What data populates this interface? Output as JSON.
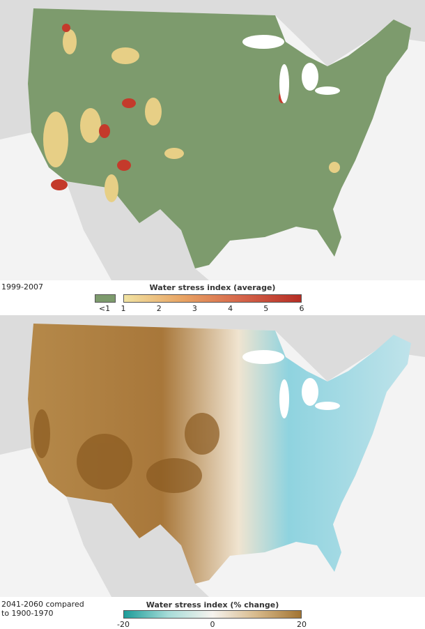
{
  "maps": [
    {
      "period": "1999-2007",
      "legend": {
        "title": "Water stress index (average)",
        "low_label": "<1",
        "ticks": [
          1,
          2,
          3,
          4,
          5,
          6
        ]
      }
    },
    {
      "period": "2041-2060 compared to 1900-1970",
      "legend": {
        "title": "Water stress index (% change)",
        "ticks": [
          -20,
          0,
          20
        ]
      }
    }
  ]
}
